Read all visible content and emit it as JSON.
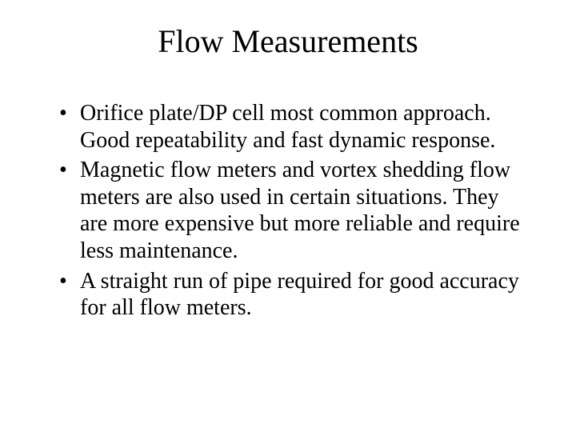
{
  "slide": {
    "title": "Flow Measurements",
    "bullets": [
      "Orifice plate/DP cell most common approach.  Good repeatability and fast dynamic response.",
      "Magnetic flow meters and vortex shedding flow meters are also used in certain situations.  They are more expensive but more reliable and require less maintenance.",
      "A straight run of pipe required for good accuracy for all flow meters."
    ],
    "title_fontsize": 40,
    "body_fontsize": 28,
    "font_family": "Times New Roman",
    "text_color": "#000000",
    "background_color": "#ffffff"
  }
}
